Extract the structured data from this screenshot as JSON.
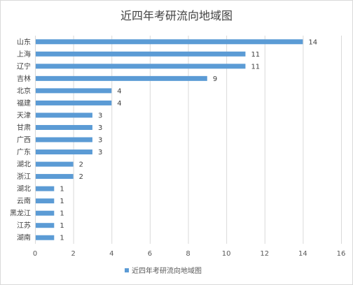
{
  "chart_data": {
    "type": "bar",
    "orientation": "horizontal",
    "title": "近四年考研流向地域图",
    "categories": [
      "山东",
      "上海",
      "辽宁",
      "吉林",
      "北京",
      "福建",
      "天津",
      "甘肃",
      "广西",
      "广东",
      "湖北",
      "浙江",
      "湖北",
      "云南",
      "黑龙江",
      "江苏",
      "湖南"
    ],
    "series": [
      {
        "name": "近四年考研流向地域图",
        "values": [
          14,
          11,
          11,
          9,
          4,
          4,
          3,
          3,
          3,
          3,
          2,
          2,
          1,
          1,
          1,
          1,
          1
        ]
      }
    ],
    "xlim": [
      0,
      16
    ],
    "xticks": [
      0,
      2,
      4,
      6,
      8,
      10,
      12,
      14,
      16
    ],
    "grid": true,
    "data_labels": true,
    "legend": "bottom",
    "bar_color": "#5b9bd5"
  }
}
